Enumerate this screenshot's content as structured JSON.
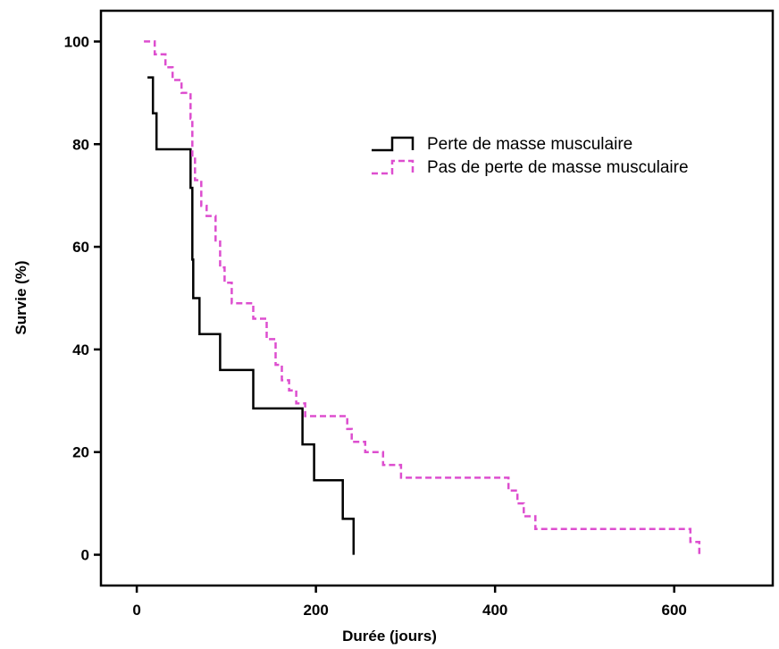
{
  "chart_data": {
    "type": "line",
    "subtype": "step",
    "title": "",
    "xlabel": "Durée (jours)",
    "ylabel": "Survie (%)",
    "xlim": [
      -40,
      710
    ],
    "ylim": [
      -6,
      106
    ],
    "xticks": [
      0,
      200,
      400,
      600
    ],
    "yticks": [
      0,
      20,
      40,
      60,
      80,
      100
    ],
    "grid": false,
    "legend_position": "top-right",
    "series": [
      {
        "name": "Perte de masse musculaire",
        "color": "#000000",
        "style": "solid",
        "points": [
          [
            12,
            93
          ],
          [
            18,
            93
          ],
          [
            18,
            86
          ],
          [
            22,
            86
          ],
          [
            22,
            79
          ],
          [
            60,
            79
          ],
          [
            60,
            71.5
          ],
          [
            62,
            71.5
          ],
          [
            62,
            57.5
          ],
          [
            63,
            57.5
          ],
          [
            63,
            50
          ],
          [
            70,
            50
          ],
          [
            70,
            43
          ],
          [
            93,
            43
          ],
          [
            93,
            36
          ],
          [
            130,
            36
          ],
          [
            130,
            28.5
          ],
          [
            185,
            28.5
          ],
          [
            185,
            21.5
          ],
          [
            198,
            21.5
          ],
          [
            198,
            14.5
          ],
          [
            230,
            14.5
          ],
          [
            230,
            7
          ],
          [
            242,
            7
          ],
          [
            242,
            0
          ]
        ]
      },
      {
        "name": "Pas de perte de masse musculaire",
        "color": "#dd4ecf",
        "style": "dashed",
        "points": [
          [
            8,
            100
          ],
          [
            20,
            100
          ],
          [
            20,
            97.5
          ],
          [
            32,
            97.5
          ],
          [
            32,
            95
          ],
          [
            40,
            95
          ],
          [
            40,
            92.5
          ],
          [
            50,
            92.5
          ],
          [
            50,
            90
          ],
          [
            60,
            90
          ],
          [
            60,
            85
          ],
          [
            62,
            85
          ],
          [
            62,
            77.5
          ],
          [
            65,
            77.5
          ],
          [
            65,
            73
          ],
          [
            72,
            73
          ],
          [
            72,
            68
          ],
          [
            78,
            68
          ],
          [
            78,
            66
          ],
          [
            88,
            66
          ],
          [
            88,
            61
          ],
          [
            93,
            61
          ],
          [
            93,
            56
          ],
          [
            98,
            56
          ],
          [
            98,
            53
          ],
          [
            106,
            53
          ],
          [
            106,
            49
          ],
          [
            130,
            49
          ],
          [
            130,
            46
          ],
          [
            145,
            46
          ],
          [
            145,
            42
          ],
          [
            155,
            42
          ],
          [
            155,
            37
          ],
          [
            162,
            37
          ],
          [
            162,
            34
          ],
          [
            170,
            34
          ],
          [
            170,
            32
          ],
          [
            178,
            32
          ],
          [
            178,
            29.5
          ],
          [
            188,
            29.5
          ],
          [
            188,
            27
          ],
          [
            235,
            27
          ],
          [
            235,
            24.5
          ],
          [
            240,
            24.5
          ],
          [
            240,
            22
          ],
          [
            255,
            22
          ],
          [
            255,
            20
          ],
          [
            275,
            20
          ],
          [
            275,
            17.5
          ],
          [
            295,
            17.5
          ],
          [
            295,
            15
          ],
          [
            415,
            15
          ],
          [
            415,
            12.5
          ],
          [
            425,
            12.5
          ],
          [
            425,
            10
          ],
          [
            432,
            10
          ],
          [
            432,
            7.5
          ],
          [
            445,
            7.5
          ],
          [
            445,
            5
          ],
          [
            618,
            5
          ],
          [
            618,
            2.5
          ],
          [
            628,
            2.5
          ],
          [
            628,
            0
          ]
        ]
      }
    ]
  }
}
